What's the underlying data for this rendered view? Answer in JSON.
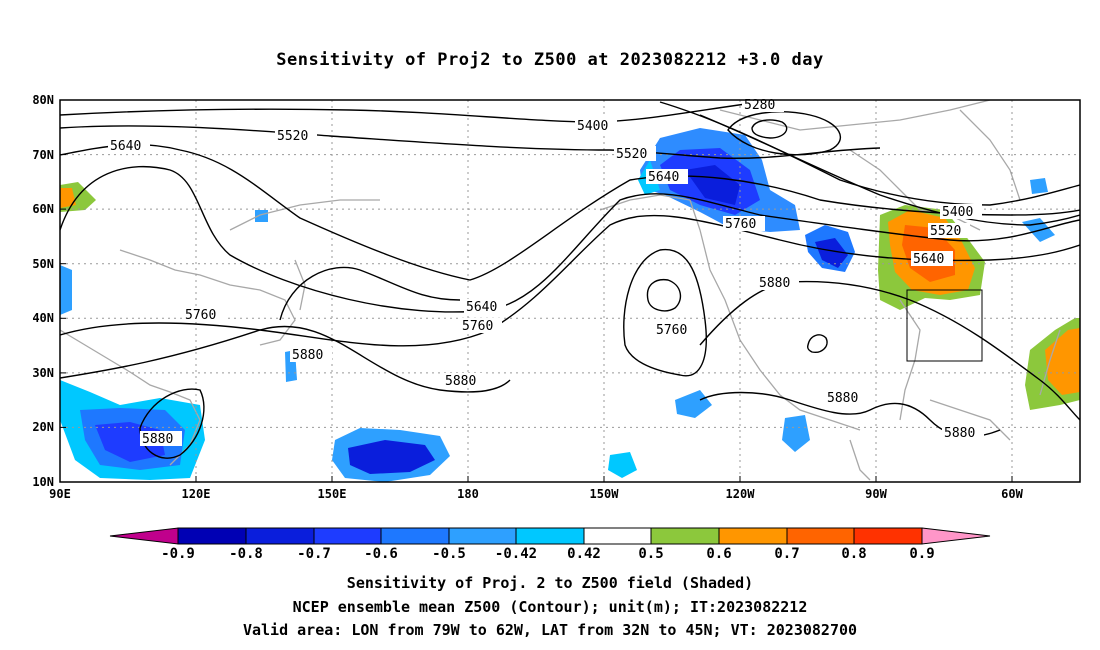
{
  "title": "Sensitivity of Proj2 to Z500 at 2023082212 +3.0 day",
  "map": {
    "lon_ticks": [
      "90E",
      "120E",
      "150E",
      "180",
      "150W",
      "120W",
      "90W",
      "60W"
    ],
    "lat_ticks": [
      "80N",
      "70N",
      "60N",
      "50N",
      "40N",
      "30N",
      "20N",
      "10N"
    ],
    "gridlines": "dotted",
    "valid_area_box": {
      "lon_from": "79W",
      "lon_to": "62W",
      "lat_from": "32N",
      "lat_to": "45N"
    }
  },
  "contour_labels": [
    {
      "text": "5280"
    },
    {
      "text": "5400"
    },
    {
      "text": "5520"
    },
    {
      "text": "5520"
    },
    {
      "text": "5640"
    },
    {
      "text": "5640"
    },
    {
      "text": "5760"
    },
    {
      "text": "5760"
    },
    {
      "text": "5640"
    },
    {
      "text": "5760"
    },
    {
      "text": "5760"
    },
    {
      "text": "5880"
    },
    {
      "text": "5880"
    },
    {
      "text": "5880"
    },
    {
      "text": "5880"
    },
    {
      "text": "5880"
    },
    {
      "text": "5400"
    },
    {
      "text": "5520"
    },
    {
      "text": "5640"
    },
    {
      "text": "5880"
    }
  ],
  "colorbar": {
    "labels": [
      "-0.9",
      "-0.8",
      "-0.7",
      "-0.6",
      "-0.5",
      "-0.42",
      "0.42",
      "0.5",
      "0.6",
      "0.7",
      "0.8",
      "0.9"
    ],
    "colors": [
      "#c0008c",
      "#0000b4",
      "#0a1edc",
      "#1e3cff",
      "#1e78ff",
      "#2ea0ff",
      "#00c8ff",
      "#ffffff",
      "#8cc83c",
      "#ff9600",
      "#ff6400",
      "#ff3200",
      "#ff0000",
      "#ff96c8"
    ]
  },
  "captions": [
    "Sensitivity of Proj. 2 to Z500 field (Shaded)",
    "NCEP ensemble mean Z500 (Contour); unit(m); IT:2023082212",
    "Valid area: LON from 79W to 62W, LAT from 32N to 45N; VT: 2023082700"
  ]
}
